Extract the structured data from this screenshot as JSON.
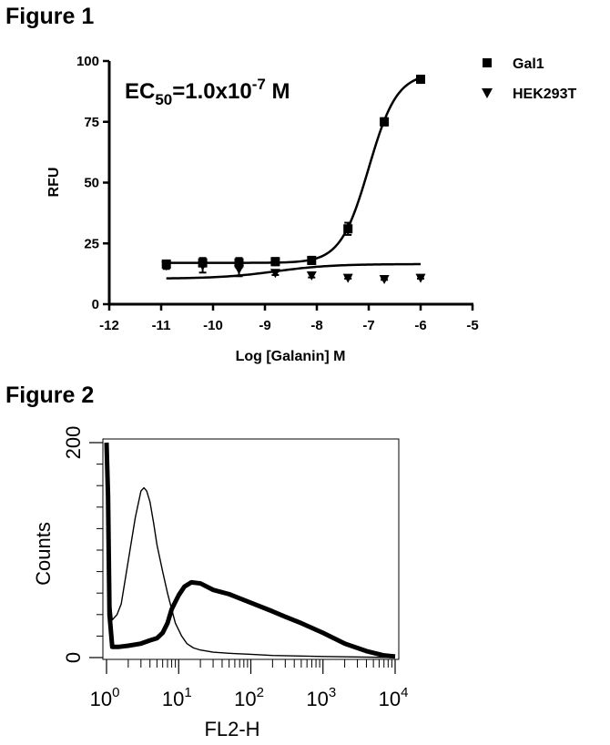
{
  "figures": {
    "fig1_title": "Figure 1",
    "fig2_title": "Figure 2"
  },
  "chart_data": [
    {
      "type": "scatter",
      "title": "",
      "xlabel": "Log [Galanin] M",
      "ylabel": "RFU",
      "xlim": [
        -12,
        -5
      ],
      "ylim": [
        0,
        100
      ],
      "x_ticks": [
        "-12",
        "-11",
        "-10",
        "-9",
        "-8",
        "-7",
        "-6",
        "-5"
      ],
      "y_ticks": [
        "0",
        "25",
        "50",
        "75",
        "100"
      ],
      "grid": false,
      "legend_position": "top-right",
      "annotation": {
        "prefix": "EC",
        "sub": "50",
        "mid": "=1.0x10",
        "sup": "-7",
        "suffix": " M"
      },
      "series": [
        {
          "name": "Gal1",
          "marker": "square",
          "color": "#000000",
          "x": [
            -10.9,
            -10.2,
            -9.5,
            -8.8,
            -8.1,
            -7.4,
            -6.7,
            -6.0
          ],
          "y": [
            16.5,
            17.0,
            17.0,
            17.5,
            18.0,
            31.0,
            75.0,
            92.5
          ],
          "error": [
            1.5,
            1.5,
            2.0,
            1.5,
            1.5,
            2.5,
            1.5,
            1.5
          ],
          "fit": {
            "bottom": 17,
            "top": 95,
            "log_ec50": -7.0,
            "hill": 1.6
          }
        },
        {
          "name": "HEK293T",
          "marker": "triangle-down",
          "color": "#000000",
          "x": [
            -10.9,
            -10.2,
            -9.5,
            -8.8,
            -8.1,
            -7.4,
            -6.7,
            -6.0
          ],
          "y": [
            16.0,
            16.0,
            14.5,
            13.0,
            12.0,
            11.0,
            10.5,
            11.0
          ],
          "error": [
            1.5,
            3.0,
            3.0,
            1.0,
            1.0,
            0.5,
            0.5,
            0.5
          ],
          "fit": {
            "bottom": 10.5,
            "top": 16.5,
            "log_ec50": -8.8,
            "hill": 0.8
          }
        }
      ]
    },
    {
      "type": "line",
      "title": "",
      "xlabel": "FL2-H",
      "ylabel": "Counts",
      "xscale": "log",
      "xlim": [
        1,
        10000
      ],
      "ylim": [
        0,
        200
      ],
      "x_ticks": [
        {
          "base": "10",
          "exp": "0"
        },
        {
          "base": "10",
          "exp": "1"
        },
        {
          "base": "10",
          "exp": "2"
        },
        {
          "base": "10",
          "exp": "3"
        },
        {
          "base": "10",
          "exp": "4"
        }
      ],
      "y_ticks": [
        "0",
        "200"
      ],
      "grid": false,
      "series": [
        {
          "style": "thin",
          "color": "#000000",
          "x": [
            1.0,
            1.05,
            1.1,
            1.2,
            1.4,
            1.6,
            2.0,
            2.5,
            3.0,
            3.3,
            3.6,
            4.0,
            4.5,
            5.0,
            6.0,
            7.0,
            8.0,
            9.0,
            11,
            13,
            16,
            20,
            30,
            50,
            100,
            200,
            1000,
            10000
          ],
          "y": [
            195,
            120,
            60,
            35,
            40,
            50,
            90,
            130,
            155,
            158,
            155,
            145,
            125,
            105,
            80,
            60,
            45,
            32,
            20,
            13,
            9,
            7,
            5,
            4,
            3,
            2,
            1,
            0
          ]
        },
        {
          "style": "bold",
          "color": "#000000",
          "x": [
            1.0,
            1.05,
            1.1,
            1.2,
            1.5,
            2.0,
            3.0,
            4.0,
            5.0,
            6.0,
            7.0,
            8.0,
            10,
            12,
            15,
            20,
            30,
            50,
            100,
            200,
            300,
            500,
            1000,
            2000,
            4000,
            7000,
            10000
          ],
          "y": [
            200,
            150,
            40,
            10,
            10,
            11,
            13,
            16,
            18,
            23,
            32,
            45,
            58,
            66,
            70,
            69,
            63,
            59,
            51,
            43,
            38,
            32,
            23,
            13,
            6,
            2,
            1
          ]
        }
      ]
    }
  ]
}
